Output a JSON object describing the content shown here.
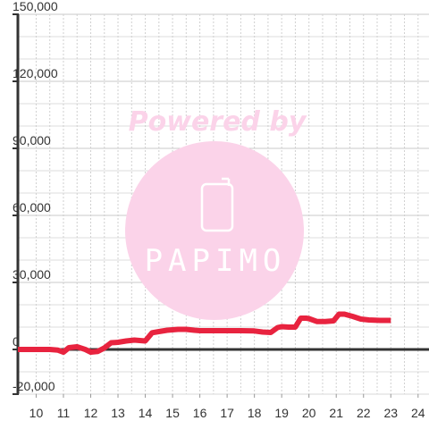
{
  "chart_data": {
    "type": "line",
    "x": [
      9.33,
      10,
      10.5,
      10.8,
      11,
      11.2,
      11.5,
      11.8,
      12,
      12.25,
      12.5,
      12.75,
      13,
      13.3,
      13.6,
      14,
      14.25,
      14.5,
      14.8,
      15,
      15.2,
      15.5,
      15.8,
      16,
      16.5,
      17,
      17.5,
      18,
      18.3,
      18.6,
      18.85,
      19,
      19.25,
      19.5,
      19.7,
      19.9,
      20,
      20.3,
      20.6,
      20.9,
      21.1,
      21.3,
      21.6,
      21.9,
      22.2,
      22.6,
      23.0
    ],
    "series": [
      {
        "values": [
          0,
          0,
          0,
          -300,
          -1200,
          800,
          1200,
          0,
          -1200,
          -900,
          700,
          3000,
          3200,
          3800,
          4200,
          3800,
          7500,
          8000,
          8600,
          8800,
          9000,
          9000,
          8600,
          8400,
          8400,
          8400,
          8400,
          8300,
          7800,
          7600,
          9800,
          10200,
          10000,
          10000,
          14000,
          14000,
          13800,
          12500,
          12500,
          12800,
          15800,
          15800,
          14800,
          13600,
          13200,
          13000,
          13000
        ],
        "color": "#e8233f"
      }
    ],
    "xlim": [
      9.33,
      24.4
    ],
    "ylim": [
      -20000,
      150000
    ],
    "xticks": [
      "10",
      "11",
      "12",
      "13",
      "14",
      "15",
      "16",
      "17",
      "18",
      "19",
      "20",
      "21",
      "22",
      "23",
      "24"
    ],
    "yticks": [
      "150,000",
      "120,000",
      "90,000",
      "60,000",
      "30,000",
      "0",
      "-20,000"
    ],
    "ytick_values": [
      150000,
      120000,
      90000,
      60000,
      30000,
      0,
      -20000
    ],
    "minor_y_step": 10000,
    "grid": true
  },
  "watermark": {
    "line1": "Powered by",
    "brand": "PAPIMO",
    "icon": "phone-icon",
    "color": "#fbd3e9"
  }
}
